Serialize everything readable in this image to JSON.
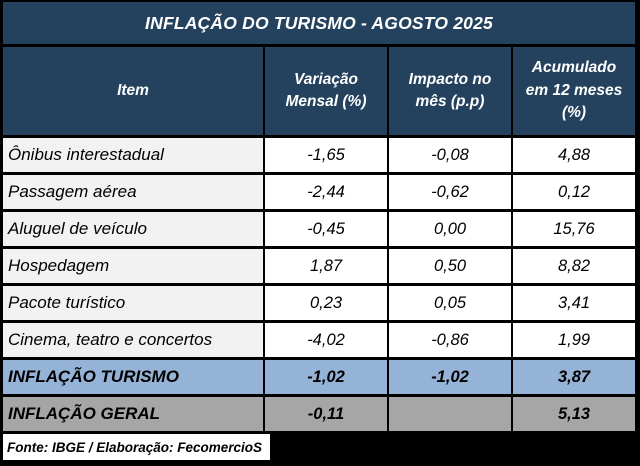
{
  "title_bar": {
    "title": "INFLAÇÃO DO TURISMO - AGOSTO 2025"
  },
  "table": {
    "columns": [
      "Item",
      "Variação Mensal (%)",
      "Impacto no mês (p.p)",
      "Acumulado em 12 meses (%)"
    ],
    "rows": [
      {
        "item": "Ônibus interestadual",
        "values": [
          "-1,65",
          "-0,08",
          "4,88"
        ]
      },
      {
        "item": "Passagem aérea",
        "values": [
          "-2,44",
          "-0,62",
          "0,12"
        ]
      },
      {
        "item": "Aluguel de veículo",
        "values": [
          "-0,45",
          "0,00",
          "15,76"
        ]
      },
      {
        "item": "Hospedagem",
        "values": [
          "1,87",
          "0,50",
          "8,82"
        ]
      },
      {
        "item": "Pacote turístico",
        "values": [
          "0,23",
          "0,05",
          "3,41"
        ]
      },
      {
        "item": "Cinema, teatro e concertos",
        "values": [
          "-4,02",
          "-0,86",
          "1,99"
        ]
      }
    ],
    "summary_rows": [
      {
        "item": "INFLAÇÃO TURISMO",
        "values": [
          "-1,02",
          "-1,02",
          "3,87"
        ]
      },
      {
        "item": "INFLAÇÃO GERAL",
        "values": [
          "-0,11",
          "",
          "5,13"
        ]
      }
    ]
  },
  "footer": {
    "source": "Fonte: IBGE / Elaboração: FecomercioS"
  },
  "colors": {
    "header_navy": "#24425e",
    "item_cell_gray": "#f2f2f2",
    "turismo_row_blue": "#95b3d7",
    "geral_row_gray": "#a6a6a6",
    "border_black": "#000000",
    "header_text": "#ffffff",
    "body_text": "#000000"
  },
  "chart_data": {
    "type": "table",
    "title": "INFLAÇÃO DO TURISMO - AGOSTO 2025",
    "columns": [
      "Item",
      "Variação Mensal (%)",
      "Impacto no mês (p.p)",
      "Acumulado em 12 meses (%)"
    ],
    "rows": [
      [
        "Ônibus interestadual",
        -1.65,
        -0.08,
        4.88
      ],
      [
        "Passagem aérea",
        -2.44,
        -0.62,
        0.12
      ],
      [
        "Aluguel de veículo",
        -0.45,
        0.0,
        15.76
      ],
      [
        "Hospedagem",
        1.87,
        0.5,
        8.82
      ],
      [
        "Pacote turístico",
        0.23,
        0.05,
        3.41
      ],
      [
        "Cinema, teatro e concertos",
        -4.02,
        -0.86,
        1.99
      ],
      [
        "INFLAÇÃO TURISMO",
        -1.02,
        -1.02,
        3.87
      ],
      [
        "INFLAÇÃO GERAL",
        -0.11,
        null,
        5.13
      ]
    ],
    "source": "Fonte: IBGE / Elaboração: FecomercioS"
  }
}
